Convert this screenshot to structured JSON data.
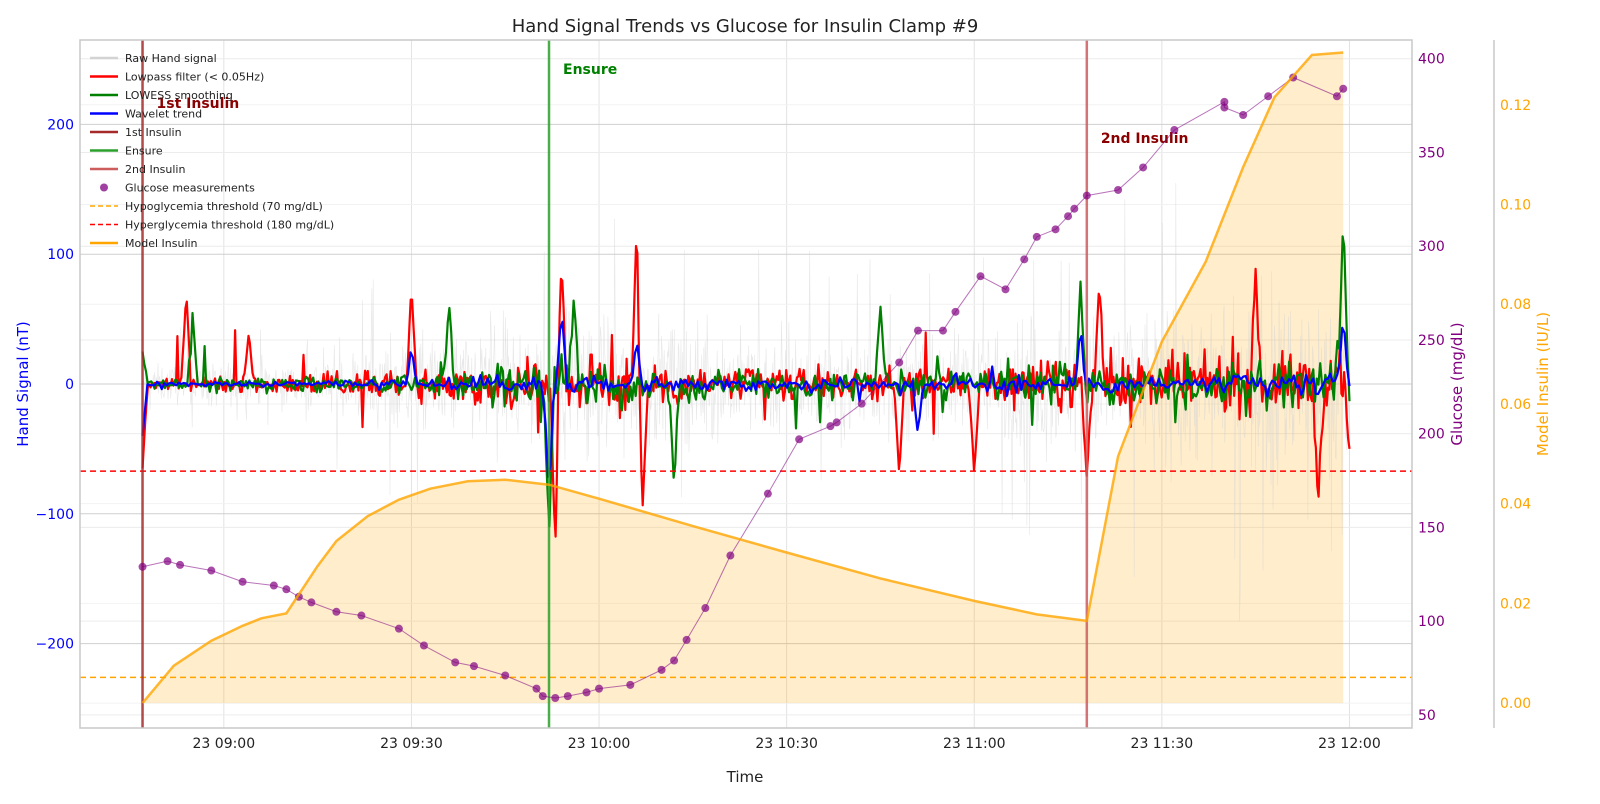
{
  "chart_data": {
    "type": "line",
    "title": "Hand Signal Trends vs Glucose for Insulin Clamp #9",
    "xlabel": "Time",
    "xlim": [
      "2024-01-23T08:37",
      "2024-01-23T12:10"
    ],
    "x_ticks": [
      {
        "t": "2024-01-23T09:00",
        "label": "23 09:00"
      },
      {
        "t": "2024-01-23T09:30",
        "label": "23 09:30"
      },
      {
        "t": "2024-01-23T10:00",
        "label": "23 10:00"
      },
      {
        "t": "2024-01-23T10:30",
        "label": "23 10:30"
      },
      {
        "t": "2024-01-23T11:00",
        "label": "23 11:00"
      },
      {
        "t": "2024-01-23T11:30",
        "label": "23 11:30"
      },
      {
        "t": "2024-01-23T12:00",
        "label": "23 12:00"
      }
    ],
    "axes": {
      "left": {
        "label": "Hand Signal (nT)",
        "ylim": [
          -265,
          265
        ],
        "ticks": [
          -200,
          -100,
          0,
          100,
          200
        ],
        "tick_labels": [
          "−200",
          "−100",
          "0",
          "100",
          "200"
        ],
        "color": "#0000ff"
      },
      "right1": {
        "label": "Glucose (mg/dL)",
        "ylim": [
          43,
          410
        ],
        "ticks": [
          50,
          100,
          150,
          200,
          250,
          300,
          350,
          400
        ],
        "color": "#800080"
      },
      "right2": {
        "label": "Model Insulin (IU/L)",
        "ylim": [
          -0.005,
          0.133
        ],
        "ticks": [
          0.0,
          0.02,
          0.04,
          0.06,
          0.08,
          0.1,
          0.12
        ],
        "tick_labels": [
          "0.00",
          "0.02",
          "0.04",
          "0.06",
          "0.08",
          "0.10",
          "0.12"
        ],
        "color": "#ffa500"
      }
    },
    "grid": true,
    "legend_position": "upper-left",
    "legend": [
      {
        "label": "Raw Hand signal",
        "color": "#d3d3d3",
        "kind": "line"
      },
      {
        "label": "Lowpass filter (< 0.05Hz)",
        "color": "#ff0000",
        "kind": "line"
      },
      {
        "label": "LOWESS smoothing",
        "color": "#008000",
        "kind": "line"
      },
      {
        "label": "Wavelet trend",
        "color": "#0000ff",
        "kind": "line"
      },
      {
        "label": "1st Insulin",
        "color": "#a52a2a",
        "kind": "line"
      },
      {
        "label": "Ensure",
        "color": "#2ca02c",
        "kind": "line"
      },
      {
        "label": "2nd Insulin",
        "color": "#cd5c5c",
        "kind": "line"
      },
      {
        "label": "Glucose measurements",
        "color": "#800080",
        "kind": "marker"
      },
      {
        "label": "Hypoglycemia threshold (70 mg/dL)",
        "color": "#ffa500",
        "kind": "dash"
      },
      {
        "label": "Hyperglycemia threshold (180 mg/dL)",
        "color": "#ff0000",
        "kind": "dash"
      },
      {
        "label": "Model Insulin",
        "color": "#ffa500",
        "kind": "line"
      }
    ],
    "events": [
      {
        "name": "1st Insulin",
        "t": "2024-01-23T08:47",
        "color": "#a52a2a",
        "annotation": "1st Insulin"
      },
      {
        "name": "Ensure",
        "t": "2024-01-23T09:52",
        "color": "#2ca02c",
        "annotation": "Ensure"
      },
      {
        "name": "2nd Insulin",
        "t": "2024-01-23T11:18",
        "color": "#cd5c5c",
        "annotation": "2nd Insulin"
      }
    ],
    "thresholds": [
      {
        "name": "Hypoglycemia threshold (70 mg/dL)",
        "glucose": 70,
        "color": "#ffa500"
      },
      {
        "name": "Hyperglycemia threshold (180 mg/dL)",
        "glucose": 180,
        "color": "#ff0000"
      }
    ],
    "series": [
      {
        "name": "Glucose measurements",
        "axis": "right1",
        "color": "#800080",
        "points": [
          [
            "2024-01-23T08:47",
            129
          ],
          [
            "2024-01-23T08:51",
            132
          ],
          [
            "2024-01-23T08:53",
            130
          ],
          [
            "2024-01-23T08:58",
            127
          ],
          [
            "2024-01-23T09:03",
            121
          ],
          [
            "2024-01-23T09:08",
            119
          ],
          [
            "2024-01-23T09:10",
            117
          ],
          [
            "2024-01-23T09:12",
            113
          ],
          [
            "2024-01-23T09:14",
            110
          ],
          [
            "2024-01-23T09:18",
            105
          ],
          [
            "2024-01-23T09:22",
            103
          ],
          [
            "2024-01-23T09:28",
            96
          ],
          [
            "2024-01-23T09:32",
            87
          ],
          [
            "2024-01-23T09:37",
            78
          ],
          [
            "2024-01-23T09:40",
            76
          ],
          [
            "2024-01-23T09:45",
            71
          ],
          [
            "2024-01-23T09:50",
            64
          ],
          [
            "2024-01-23T09:51",
            60
          ],
          [
            "2024-01-23T09:53",
            59
          ],
          [
            "2024-01-23T09:55",
            60
          ],
          [
            "2024-01-23T09:58",
            62
          ],
          [
            "2024-01-23T10:00",
            64
          ],
          [
            "2024-01-23T10:05",
            66
          ],
          [
            "2024-01-23T10:10",
            74
          ],
          [
            "2024-01-23T10:12",
            79
          ],
          [
            "2024-01-23T10:14",
            90
          ],
          [
            "2024-01-23T10:17",
            107
          ],
          [
            "2024-01-23T10:21",
            135
          ],
          [
            "2024-01-23T10:27",
            168
          ],
          [
            "2024-01-23T10:32",
            197
          ],
          [
            "2024-01-23T10:37",
            204
          ],
          [
            "2024-01-23T10:38",
            206
          ],
          [
            "2024-01-23T10:42",
            216
          ],
          [
            "2024-01-23T10:48",
            238
          ],
          [
            "2024-01-23T10:51",
            255
          ],
          [
            "2024-01-23T10:55",
            255
          ],
          [
            "2024-01-23T10:57",
            265
          ],
          [
            "2024-01-23T11:01",
            284
          ],
          [
            "2024-01-23T11:05",
            277
          ],
          [
            "2024-01-23T11:08",
            293
          ],
          [
            "2024-01-23T11:10",
            305
          ],
          [
            "2024-01-23T11:13",
            309
          ],
          [
            "2024-01-23T11:15",
            316
          ],
          [
            "2024-01-23T11:16",
            320
          ],
          [
            "2024-01-23T11:18",
            327
          ],
          [
            "2024-01-23T11:23",
            330
          ],
          [
            "2024-01-23T11:27",
            342
          ],
          [
            "2024-01-23T11:32",
            362
          ],
          [
            "2024-01-23T11:40",
            377
          ],
          [
            "2024-01-23T11:40",
            374
          ],
          [
            "2024-01-23T11:43",
            370
          ],
          [
            "2024-01-23T11:47",
            380
          ],
          [
            "2024-01-23T11:51",
            390
          ],
          [
            "2024-01-23T11:58",
            380
          ],
          [
            "2024-01-23T11:59",
            384
          ]
        ]
      },
      {
        "name": "Model Insulin",
        "axis": "right2",
        "color": "#ffa500",
        "fill": true,
        "points": [
          [
            "2024-01-23T08:47",
            0.0
          ],
          [
            "2024-01-23T08:52",
            0.0075
          ],
          [
            "2024-01-23T08:58",
            0.0125
          ],
          [
            "2024-01-23T09:03",
            0.0155
          ],
          [
            "2024-01-23T09:06",
            0.017
          ],
          [
            "2024-01-23T09:10",
            0.018
          ],
          [
            "2024-01-23T09:15",
            0.0275
          ],
          [
            "2024-01-23T09:18",
            0.0325
          ],
          [
            "2024-01-23T09:23",
            0.0375
          ],
          [
            "2024-01-23T09:28",
            0.0408
          ],
          [
            "2024-01-23T09:33",
            0.043
          ],
          [
            "2024-01-23T09:39",
            0.0445
          ],
          [
            "2024-01-23T09:45",
            0.0448
          ],
          [
            "2024-01-23T09:52",
            0.0438
          ],
          [
            "2024-01-23T10:00",
            0.041
          ],
          [
            "2024-01-23T10:15",
            0.0355
          ],
          [
            "2024-01-23T10:30",
            0.0302
          ],
          [
            "2024-01-23T10:45",
            0.025
          ],
          [
            "2024-01-23T11:00",
            0.0205
          ],
          [
            "2024-01-23T11:10",
            0.0178
          ],
          [
            "2024-01-23T11:18",
            0.0165
          ],
          [
            "2024-01-23T11:23",
            0.0495
          ],
          [
            "2024-01-23T11:30",
            0.0725
          ],
          [
            "2024-01-23T11:37",
            0.0885
          ],
          [
            "2024-01-23T11:43",
            0.1075
          ],
          [
            "2024-01-23T11:48",
            0.1215
          ],
          [
            "2024-01-23T11:54",
            0.13
          ],
          [
            "2024-01-23T11:59",
            0.1305
          ]
        ]
      },
      {
        "name": "Raw Hand signal",
        "axis": "left",
        "color": "#d3d3d3",
        "note": "dense noisy signal; amplitude envelope in nT",
        "envelope": [
          [
            "2024-01-23T08:47",
            40
          ],
          [
            "2024-01-23T09:15",
            60
          ],
          [
            "2024-01-23T09:50",
            150
          ],
          [
            "2024-01-23T10:00",
            160
          ],
          [
            "2024-01-23T10:20",
            120
          ],
          [
            "2024-01-23T10:50",
            90
          ],
          [
            "2024-01-23T11:10",
            150
          ],
          [
            "2024-01-23T11:30",
            170
          ],
          [
            "2024-01-23T12:00",
            210
          ]
        ]
      },
      {
        "name": "Lowpass filter (< 0.05Hz)",
        "axis": "left",
        "color": "#ff0000",
        "peaks": [
          [
            "2024-01-23T08:47",
            -65
          ],
          [
            "2024-01-23T08:54",
            70
          ],
          [
            "2024-01-23T09:04",
            40
          ],
          [
            "2024-01-23T09:30",
            75
          ],
          [
            "2024-01-23T09:53",
            -125
          ],
          [
            "2024-01-23T09:54",
            95
          ],
          [
            "2024-01-23T10:06",
            120
          ],
          [
            "2024-01-23T10:07",
            -95
          ],
          [
            "2024-01-23T10:48",
            -70
          ],
          [
            "2024-01-23T11:00",
            -70
          ],
          [
            "2024-01-23T11:18",
            -75
          ],
          [
            "2024-01-23T11:20",
            80
          ],
          [
            "2024-01-23T11:45",
            90
          ],
          [
            "2024-01-23T11:55",
            -95
          ],
          [
            "2024-01-23T12:00",
            -50
          ]
        ]
      },
      {
        "name": "LOWESS smoothing",
        "axis": "left",
        "color": "#008000",
        "peaks": [
          [
            "2024-01-23T08:47",
            25
          ],
          [
            "2024-01-23T08:55",
            55
          ],
          [
            "2024-01-23T09:36",
            65
          ],
          [
            "2024-01-23T09:52",
            -120
          ],
          [
            "2024-01-23T09:56",
            70
          ],
          [
            "2024-01-23T10:12",
            -80
          ],
          [
            "2024-01-23T10:45",
            60
          ],
          [
            "2024-01-23T11:17",
            80
          ],
          [
            "2024-01-23T11:59",
            130
          ]
        ]
      },
      {
        "name": "Wavelet trend",
        "axis": "left",
        "color": "#0000ff",
        "peaks": [
          [
            "2024-01-23T08:47",
            -40
          ],
          [
            "2024-01-23T09:30",
            30
          ],
          [
            "2024-01-23T09:52",
            -90
          ],
          [
            "2024-01-23T09:54",
            60
          ],
          [
            "2024-01-23T10:06",
            35
          ],
          [
            "2024-01-23T10:51",
            -40
          ],
          [
            "2024-01-23T11:17",
            45
          ],
          [
            "2024-01-23T11:59",
            55
          ]
        ]
      }
    ]
  }
}
